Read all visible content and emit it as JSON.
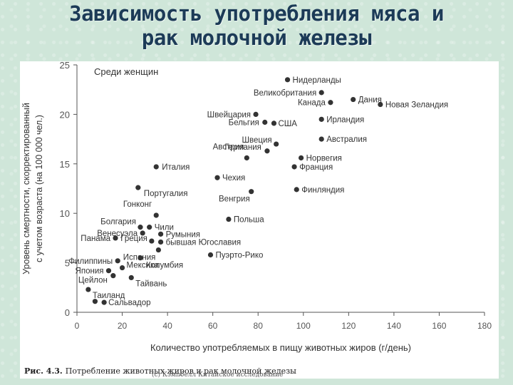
{
  "slide": {
    "title_line1": "Зависимость употребления мяса и",
    "title_line2": "рак молочной железы",
    "caption_number": "Рис. 4.3.",
    "caption_text": "Потребление животных жиров и рак молочной железы",
    "author_text": "(c) Кэмпбелл Китайское исследование"
  },
  "chart_data": {
    "type": "scatter",
    "title": "Среди женщин",
    "xlabel": "Количество употребляемых в пищу животных жиров (г/день)",
    "ylabel_line1": "Уровень смертности, скорректированный",
    "ylabel_line2": "с учетом возраста (на 100 000 чел.)",
    "xlim": [
      0,
      180
    ],
    "ylim": [
      0,
      25
    ],
    "xticks": [
      0,
      20,
      40,
      60,
      80,
      100,
      120,
      140,
      160,
      180
    ],
    "yticks": [
      0,
      5,
      10,
      15,
      20,
      25
    ],
    "grid": false,
    "point_color": "#333333",
    "points": [
      {
        "label": "Нидерланды",
        "x": 93,
        "y": 23.5
      },
      {
        "label": "Великобритания",
        "x": 108,
        "y": 22.2
      },
      {
        "label": "Дания",
        "x": 122,
        "y": 21.5
      },
      {
        "label": "Канада",
        "x": 112,
        "y": 21.2
      },
      {
        "label": "Новая Зеландия",
        "x": 134,
        "y": 21.0
      },
      {
        "label": "Швейцария",
        "x": 79,
        "y": 20.0
      },
      {
        "label": "Ирландия",
        "x": 108,
        "y": 19.5
      },
      {
        "label": "Бельгия",
        "x": 83,
        "y": 19.2
      },
      {
        "label": "США",
        "x": 87,
        "y": 19.1
      },
      {
        "label": "Германия",
        "x": 84,
        "y": 16.3
      },
      {
        "label": "Швеция",
        "x": 88,
        "y": 17.0
      },
      {
        "label": "Австралия",
        "x": 108,
        "y": 17.5
      },
      {
        "label": "Норвегия",
        "x": 99,
        "y": 15.6
      },
      {
        "label": "Австрия",
        "x": 75,
        "y": 15.6
      },
      {
        "label": "Италия",
        "x": 35,
        "y": 14.7
      },
      {
        "label": "Франция",
        "x": 96,
        "y": 14.7
      },
      {
        "label": "Чехия",
        "x": 62,
        "y": 13.6
      },
      {
        "label": "Португалия",
        "x": 27,
        "y": 12.6
      },
      {
        "label": "Венгрия",
        "x": 77,
        "y": 12.2
      },
      {
        "label": "Финляндия",
        "x": 97,
        "y": 12.4
      },
      {
        "label": "Гонконг",
        "x": 35,
        "y": 9.8
      },
      {
        "label": "Польша",
        "x": 67,
        "y": 9.4
      },
      {
        "label": "Болгария",
        "x": 28,
        "y": 8.6
      },
      {
        "label": "Чили",
        "x": 32,
        "y": 8.6
      },
      {
        "label": "Венесуэла",
        "x": 29,
        "y": 8.0
      },
      {
        "label": "Румыния",
        "x": 37,
        "y": 7.9
      },
      {
        "label": "Панама",
        "x": 17,
        "y": 7.5
      },
      {
        "label": "Греция",
        "x": 33,
        "y": 7.2
      },
      {
        "label": "бывшая Югославия",
        "x": 37,
        "y": 7.1
      },
      {
        "label": "Испания",
        "x": 36,
        "y": 6.3
      },
      {
        "label": "Филиппины",
        "x": 18,
        "y": 5.2
      },
      {
        "label": "Колумбия",
        "x": 28,
        "y": 5.5
      },
      {
        "label": "Пуэрто-Рико",
        "x": 59,
        "y": 5.8
      },
      {
        "label": "Япония",
        "x": 14,
        "y": 4.2
      },
      {
        "label": "Мексика",
        "x": 20,
        "y": 4.5
      },
      {
        "label": "Цейлон",
        "x": 16,
        "y": 3.7
      },
      {
        "label": "Тайвань",
        "x": 24,
        "y": 3.5
      },
      {
        "label": "Таиланд",
        "x": 5,
        "y": 2.3
      },
      {
        "label": "Сальвадор",
        "x": 12,
        "y": 1.0
      },
      {
        "label": "",
        "x": 8,
        "y": 1.1
      }
    ]
  }
}
